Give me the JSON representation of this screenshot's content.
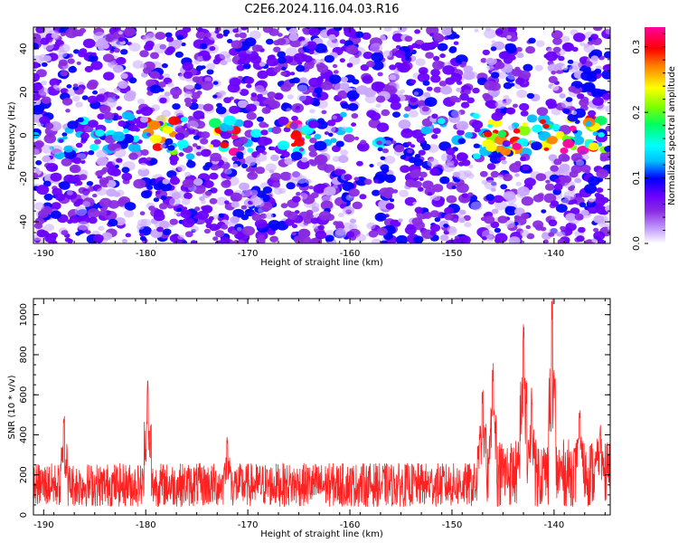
{
  "title": "C2E6.2024.116.04.03.R16",
  "chart_data": [
    {
      "type": "heatmap",
      "name": "spectrogram",
      "xlabel": "Height of straight line (km)",
      "ylabel": "Frequency (Hz)",
      "xlim": [
        -191,
        -134.5
      ],
      "ylim": [
        -50,
        50
      ],
      "xticks": [
        -190,
        -180,
        -170,
        -160,
        -150,
        -140
      ],
      "xtick_labels": [
        "-190",
        "-180",
        "-170",
        "-160",
        "-150",
        "-140"
      ],
      "yticks": [
        -40,
        -20,
        0,
        20,
        40
      ],
      "ytick_labels": [
        "-40",
        "-20",
        "0",
        "20",
        "40"
      ],
      "colorbar": {
        "label": "Normalized spectral amplitude",
        "range": [
          0.0,
          0.33
        ],
        "ticks": [
          0.0,
          0.1,
          0.2,
          0.3
        ],
        "tick_labels": [
          "0.0",
          "0.1",
          "0.2",
          "0.3"
        ],
        "colormap": [
          "#ffffff",
          "#c9a8ff",
          "#8a2be2",
          "#6a00ff",
          "#0000ff",
          "#00bfff",
          "#00ffff",
          "#00ff60",
          "#7cff00",
          "#ffff00",
          "#ff8000",
          "#ff0000",
          "#ff00a0"
        ]
      },
      "bright_band": {
        "frequency_hz": 0,
        "strong_regions_km": [
          [
            -180,
            -177
          ],
          [
            -174,
            -171
          ],
          [
            -166,
            -164
          ],
          [
            -147.5,
            -135
          ]
        ]
      }
    },
    {
      "type": "line",
      "name": "snr",
      "xlabel": "Height of straight line (km)",
      "ylabel": "SNR (10 * v/v)",
      "xlim": [
        -191,
        -134.5
      ],
      "ylim": [
        0,
        1080
      ],
      "xticks": [
        -190,
        -180,
        -170,
        -160,
        -150,
        -140
      ],
      "xtick_labels": [
        "-190",
        "-180",
        "-170",
        "-160",
        "-150",
        "-140"
      ],
      "yticks": [
        0,
        200,
        400,
        600,
        800,
        1000
      ],
      "ytick_labels": [
        "0",
        "200",
        "400",
        "600",
        "800",
        "1000"
      ],
      "line_color": "#ff2020",
      "baseline": 150,
      "peaks": [
        {
          "x": -188,
          "y": 520
        },
        {
          "x": -179.8,
          "y": 700
        },
        {
          "x": -172,
          "y": 420
        },
        {
          "x": -147,
          "y": 650
        },
        {
          "x": -146,
          "y": 780
        },
        {
          "x": -143,
          "y": 1000
        },
        {
          "x": -142.2,
          "y": 650
        },
        {
          "x": -140.2,
          "y": 1080
        },
        {
          "x": -137.5,
          "y": 560
        },
        {
          "x": -135.5,
          "y": 460
        }
      ]
    }
  ]
}
